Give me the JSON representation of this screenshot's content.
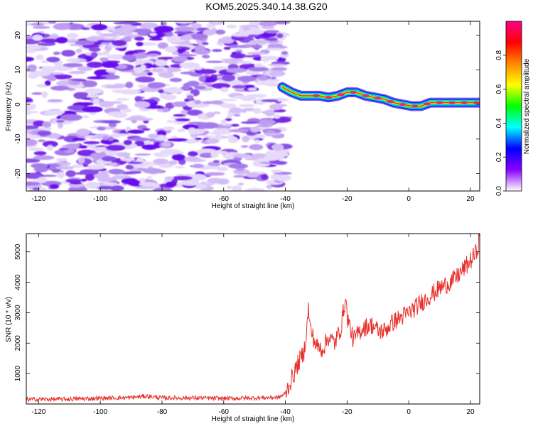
{
  "title": "KOM5.2025.340.14.38.G20",
  "chart_data": [
    {
      "type": "heatmap",
      "name": "spectrogram",
      "xlabel": "Height of straight line (km)",
      "ylabel": "Frequency (Hz)",
      "xlim": [
        -124,
        23
      ],
      "ylim": [
        -25,
        24
      ],
      "xticks": [
        "-120",
        "-100",
        "-80",
        "-60",
        "-40",
        "-20",
        "0",
        "20"
      ],
      "xtick_values": [
        -120,
        -100,
        -80,
        -60,
        -40,
        -20,
        0,
        20
      ],
      "yticks": [
        "-20",
        "-10",
        "0",
        "10",
        "20"
      ],
      "ytick_values": [
        -20,
        -10,
        0,
        10,
        20
      ],
      "noise_region_x": [
        -124,
        -40
      ],
      "signal_track": {
        "x": [
          -41,
          -38,
          -35,
          -32,
          -29,
          -26,
          -23,
          -20,
          -17,
          -14,
          -11,
          -8,
          -5,
          -2,
          1,
          4,
          7,
          10,
          14,
          18,
          23
        ],
        "freq": [
          5,
          3.5,
          2.5,
          2.5,
          2.5,
          2,
          2.5,
          3.5,
          3.5,
          2.5,
          2,
          1.5,
          0.5,
          0,
          -0.5,
          -0.5,
          0.5,
          0.5,
          0.5,
          0.5,
          0.5
        ]
      },
      "colorbar": {
        "label": "Normalized spectral amplitude",
        "range": [
          0.0,
          1.0
        ],
        "ticks": [
          "0.0",
          "0.2",
          "0.4",
          "0.6",
          "0.8"
        ],
        "tick_values": [
          0.0,
          0.2,
          0.4,
          0.6,
          0.8
        ],
        "colors": [
          "#ffffff",
          "#8800ff",
          "#0000ff",
          "#00ffff",
          "#00ff00",
          "#ffff00",
          "#ff8800",
          "#ff0000",
          "#ff0088"
        ]
      }
    },
    {
      "type": "line",
      "name": "snr",
      "xlabel": "Height of straight line (km)",
      "ylabel": "SNR (10 * v/v)",
      "xlim": [
        -124,
        23
      ],
      "ylim": [
        0,
        5600
      ],
      "xticks": [
        "-120",
        "-100",
        "-80",
        "-60",
        "-40",
        "-20",
        "0",
        "20"
      ],
      "xtick_values": [
        -120,
        -100,
        -80,
        -60,
        -40,
        -20,
        0,
        20
      ],
      "yticks": [
        "1000",
        "2000",
        "3000",
        "4000",
        "5000"
      ],
      "ytick_values": [
        1000,
        2000,
        3000,
        4000,
        5000
      ],
      "color": "#e8302c",
      "series": [
        {
          "name": "SNR",
          "x": [
            -124,
            -110,
            -100,
            -90,
            -85,
            -80,
            -70,
            -60,
            -50,
            -42,
            -40,
            -38,
            -36,
            -34,
            -33,
            -32.5,
            -32,
            -30,
            -28,
            -26,
            -24,
            -22,
            -20.5,
            -20,
            -18,
            -15,
            -12,
            -10,
            -8,
            -5,
            0,
            5,
            10,
            15,
            20,
            22,
            23
          ],
          "values": [
            150,
            160,
            190,
            210,
            260,
            200,
            200,
            180,
            200,
            220,
            350,
            800,
            1300,
            1700,
            2500,
            3200,
            2500,
            1900,
            1800,
            2200,
            2000,
            2500,
            3500,
            2900,
            2100,
            2500,
            2600,
            2400,
            2400,
            2700,
            3000,
            3400,
            3800,
            4100,
            4700,
            5000,
            5500
          ],
          "noise_amplitude": 120
        }
      ]
    }
  ]
}
